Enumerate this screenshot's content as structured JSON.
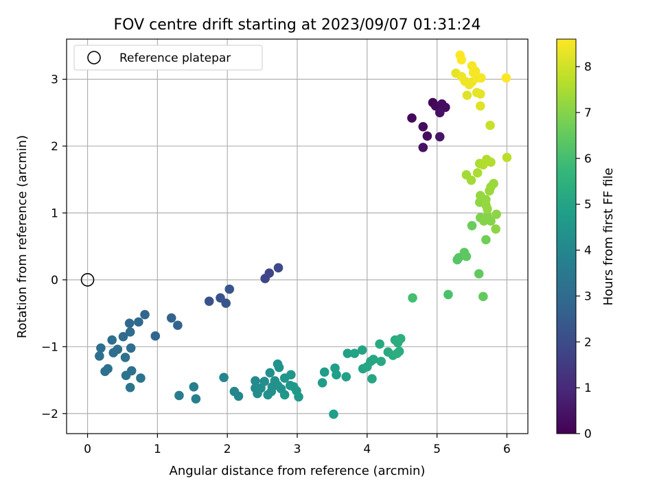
{
  "chart_data": {
    "type": "scatter",
    "title": "FOV centre drift starting at 2023/09/07 01:31:24",
    "xlabel": "Angular distance from reference (arcmin)",
    "ylabel": "Rotation from reference (arcmin)",
    "xlim": [
      -0.3,
      6.3
    ],
    "ylim": [
      -2.3,
      3.6
    ],
    "xticks": [
      0,
      1,
      2,
      3,
      4,
      5,
      6
    ],
    "yticks": [
      -2,
      -1,
      0,
      1,
      2,
      3
    ],
    "grid": true,
    "legend": {
      "placement": "top-left",
      "entries": [
        "Reference platepar"
      ]
    },
    "reference_point": {
      "x": 0,
      "y": 0,
      "label": "Reference platepar"
    },
    "colorbar": {
      "label": "Hours from first FF file",
      "range": [
        0,
        8.6
      ],
      "ticks": [
        0,
        1,
        2,
        3,
        4,
        5,
        6,
        7,
        8
      ],
      "colormap": [
        "#440154",
        "#482878",
        "#3e4989",
        "#31688e",
        "#26828e",
        "#1f9e89",
        "#35b779",
        "#6ece58",
        "#b5de2b",
        "#fde725"
      ]
    },
    "points": [
      {
        "x": 4.64,
        "y": 2.42,
        "h": 0.2
      },
      {
        "x": 4.8,
        "y": 2.29,
        "h": 0.3
      },
      {
        "x": 4.86,
        "y": 2.15,
        "h": 0.3
      },
      {
        "x": 4.8,
        "y": 1.98,
        "h": 0.4
      },
      {
        "x": 4.94,
        "y": 2.65,
        "h": 0.1
      },
      {
        "x": 4.98,
        "y": 2.6,
        "h": 0.2
      },
      {
        "x": 5.03,
        "y": 2.58,
        "h": 0.2
      },
      {
        "x": 5.07,
        "y": 2.63,
        "h": 0.3
      },
      {
        "x": 5.12,
        "y": 2.58,
        "h": 0.3
      },
      {
        "x": 5.04,
        "y": 2.5,
        "h": 0.4
      },
      {
        "x": 5.04,
        "y": 2.14,
        "h": 0.5
      },
      {
        "x": 2.54,
        "y": 0.02,
        "h": 1.8
      },
      {
        "x": 2.6,
        "y": 0.1,
        "h": 1.8
      },
      {
        "x": 2.73,
        "y": 0.18,
        "h": 1.9
      },
      {
        "x": 1.74,
        "y": -0.32,
        "h": 2.2
      },
      {
        "x": 1.9,
        "y": -0.27,
        "h": 2.2
      },
      {
        "x": 1.98,
        "y": -0.35,
        "h": 2.3
      },
      {
        "x": 2.03,
        "y": -0.14,
        "h": 2.3
      },
      {
        "x": 1.2,
        "y": -0.57,
        "h": 2.7
      },
      {
        "x": 1.29,
        "y": -0.68,
        "h": 2.7
      },
      {
        "x": 0.82,
        "y": -0.52,
        "h": 2.8
      },
      {
        "x": 0.97,
        "y": -0.84,
        "h": 2.8
      },
      {
        "x": 0.6,
        "y": -0.65,
        "h": 2.9
      },
      {
        "x": 0.73,
        "y": -0.63,
        "h": 2.9
      },
      {
        "x": 0.61,
        "y": -0.78,
        "h": 3.0
      },
      {
        "x": 0.51,
        "y": -0.85,
        "h": 3.0
      },
      {
        "x": 0.43,
        "y": -1.04,
        "h": 3.0
      },
      {
        "x": 0.37,
        "y": -1.09,
        "h": 3.1
      },
      {
        "x": 0.62,
        "y": -1.02,
        "h": 3.1
      },
      {
        "x": 0.19,
        "y": -1.02,
        "h": 3.1
      },
      {
        "x": 0.17,
        "y": -1.14,
        "h": 3.1
      },
      {
        "x": 0.54,
        "y": -1.16,
        "h": 3.2
      },
      {
        "x": 0.29,
        "y": -1.33,
        "h": 3.2
      },
      {
        "x": 0.25,
        "y": -1.37,
        "h": 3.2
      },
      {
        "x": 0.63,
        "y": -1.36,
        "h": 3.2
      },
      {
        "x": 0.55,
        "y": -1.43,
        "h": 3.3
      },
      {
        "x": 0.76,
        "y": -1.47,
        "h": 3.3
      },
      {
        "x": 0.61,
        "y": -1.61,
        "h": 3.3
      },
      {
        "x": 0.35,
        "y": -0.9,
        "h": 3.1
      },
      {
        "x": 1.31,
        "y": -1.73,
        "h": 3.6
      },
      {
        "x": 1.52,
        "y": -1.6,
        "h": 3.7
      },
      {
        "x": 1.55,
        "y": -1.78,
        "h": 3.7
      },
      {
        "x": 1.95,
        "y": -1.46,
        "h": 3.9
      },
      {
        "x": 2.1,
        "y": -1.67,
        "h": 4.0
      },
      {
        "x": 2.16,
        "y": -1.74,
        "h": 4.0
      },
      {
        "x": 2.4,
        "y": -1.51,
        "h": 4.1
      },
      {
        "x": 2.4,
        "y": -1.62,
        "h": 4.1
      },
      {
        "x": 2.43,
        "y": -1.7,
        "h": 4.2
      },
      {
        "x": 2.53,
        "y": -1.52,
        "h": 4.2
      },
      {
        "x": 2.48,
        "y": -1.62,
        "h": 4.2
      },
      {
        "x": 2.58,
        "y": -1.72,
        "h": 4.3
      },
      {
        "x": 2.63,
        "y": -1.67,
        "h": 4.3
      },
      {
        "x": 2.61,
        "y": -1.39,
        "h": 4.3
      },
      {
        "x": 2.68,
        "y": -1.51,
        "h": 4.3
      },
      {
        "x": 2.72,
        "y": -1.26,
        "h": 4.4
      },
      {
        "x": 2.74,
        "y": -1.31,
        "h": 4.4
      },
      {
        "x": 2.72,
        "y": -1.58,
        "h": 4.4
      },
      {
        "x": 2.77,
        "y": -1.63,
        "h": 4.4
      },
      {
        "x": 2.82,
        "y": -1.47,
        "h": 4.5
      },
      {
        "x": 2.82,
        "y": -1.72,
        "h": 4.5
      },
      {
        "x": 2.9,
        "y": -1.58,
        "h": 4.5
      },
      {
        "x": 2.91,
        "y": -1.42,
        "h": 4.5
      },
      {
        "x": 2.95,
        "y": -1.6,
        "h": 4.6
      },
      {
        "x": 2.99,
        "y": -1.66,
        "h": 4.6
      },
      {
        "x": 3.02,
        "y": -1.75,
        "h": 4.6
      },
      {
        "x": 2.64,
        "y": -1.6,
        "h": 4.3
      },
      {
        "x": 3.36,
        "y": -1.54,
        "h": 4.7
      },
      {
        "x": 3.39,
        "y": -1.38,
        "h": 4.7
      },
      {
        "x": 3.54,
        "y": -1.32,
        "h": 4.8
      },
      {
        "x": 3.56,
        "y": -1.42,
        "h": 4.8
      },
      {
        "x": 3.52,
        "y": -2.01,
        "h": 4.8
      },
      {
        "x": 3.7,
        "y": -1.45,
        "h": 4.9
      },
      {
        "x": 3.72,
        "y": -1.1,
        "h": 4.9
      },
      {
        "x": 3.82,
        "y": -1.1,
        "h": 5.0
      },
      {
        "x": 3.93,
        "y": -1.05,
        "h": 5.0
      },
      {
        "x": 3.94,
        "y": -1.33,
        "h": 5.0
      },
      {
        "x": 4.0,
        "y": -1.3,
        "h": 5.1
      },
      {
        "x": 4.05,
        "y": -1.22,
        "h": 5.1
      },
      {
        "x": 4.09,
        "y": -1.19,
        "h": 5.1
      },
      {
        "x": 4.07,
        "y": -1.48,
        "h": 5.1
      },
      {
        "x": 4.18,
        "y": -0.96,
        "h": 5.2
      },
      {
        "x": 4.2,
        "y": -1.22,
        "h": 5.2
      },
      {
        "x": 4.3,
        "y": -1.08,
        "h": 5.2
      },
      {
        "x": 4.37,
        "y": -1.13,
        "h": 5.3
      },
      {
        "x": 4.4,
        "y": -0.9,
        "h": 5.3
      },
      {
        "x": 4.44,
        "y": -0.94,
        "h": 5.3
      },
      {
        "x": 4.46,
        "y": -1.07,
        "h": 5.3
      },
      {
        "x": 4.48,
        "y": -0.88,
        "h": 5.4
      },
      {
        "x": 4.43,
        "y": -1.1,
        "h": 5.4
      },
      {
        "x": 4.65,
        "y": -0.27,
        "h": 6.0
      },
      {
        "x": 5.16,
        "y": -0.22,
        "h": 6.1
      },
      {
        "x": 5.29,
        "y": 0.3,
        "h": 6.3
      },
      {
        "x": 5.31,
        "y": 0.33,
        "h": 6.3
      },
      {
        "x": 5.39,
        "y": 0.41,
        "h": 6.4
      },
      {
        "x": 5.42,
        "y": 0.35,
        "h": 6.4
      },
      {
        "x": 5.6,
        "y": 0.09,
        "h": 6.5
      },
      {
        "x": 5.66,
        "y": -0.25,
        "h": 6.5
      },
      {
        "x": 5.5,
        "y": 0.81,
        "h": 6.6
      },
      {
        "x": 5.7,
        "y": 0.6,
        "h": 6.7
      },
      {
        "x": 5.62,
        "y": 0.93,
        "h": 6.9
      },
      {
        "x": 5.67,
        "y": 0.88,
        "h": 7.0
      },
      {
        "x": 5.72,
        "y": 0.95,
        "h": 7.0
      },
      {
        "x": 5.77,
        "y": 0.88,
        "h": 7.0
      },
      {
        "x": 5.84,
        "y": 0.76,
        "h": 7.1
      },
      {
        "x": 5.85,
        "y": 0.98,
        "h": 7.1
      },
      {
        "x": 5.61,
        "y": 1.16,
        "h": 7.1
      },
      {
        "x": 5.62,
        "y": 1.26,
        "h": 7.2
      },
      {
        "x": 5.7,
        "y": 1.2,
        "h": 7.2
      },
      {
        "x": 5.72,
        "y": 1.06,
        "h": 7.2
      },
      {
        "x": 5.75,
        "y": 1.33,
        "h": 7.3
      },
      {
        "x": 5.77,
        "y": 1.39,
        "h": 7.3
      },
      {
        "x": 5.81,
        "y": 1.44,
        "h": 7.3
      },
      {
        "x": 5.7,
        "y": 1.12,
        "h": 7.2
      },
      {
        "x": 5.49,
        "y": 1.49,
        "h": 7.4
      },
      {
        "x": 5.42,
        "y": 1.57,
        "h": 7.4
      },
      {
        "x": 5.58,
        "y": 1.6,
        "h": 7.5
      },
      {
        "x": 5.61,
        "y": 1.74,
        "h": 7.5
      },
      {
        "x": 5.66,
        "y": 1.72,
        "h": 7.6
      },
      {
        "x": 5.71,
        "y": 1.8,
        "h": 7.6
      },
      {
        "x": 5.77,
        "y": 1.76,
        "h": 7.6
      },
      {
        "x": 6.0,
        "y": 1.83,
        "h": 7.7
      },
      {
        "x": 5.76,
        "y": 2.31,
        "h": 7.9
      },
      {
        "x": 5.43,
        "y": 2.76,
        "h": 8.2
      },
      {
        "x": 5.62,
        "y": 2.6,
        "h": 8.2
      },
      {
        "x": 5.57,
        "y": 2.8,
        "h": 8.3
      },
      {
        "x": 5.62,
        "y": 2.78,
        "h": 8.3
      },
      {
        "x": 5.27,
        "y": 3.09,
        "h": 8.3
      },
      {
        "x": 5.35,
        "y": 3.04,
        "h": 8.4
      },
      {
        "x": 5.4,
        "y": 2.97,
        "h": 8.4
      },
      {
        "x": 5.46,
        "y": 2.92,
        "h": 8.4
      },
      {
        "x": 5.5,
        "y": 2.96,
        "h": 8.4
      },
      {
        "x": 5.52,
        "y": 3.1,
        "h": 8.5
      },
      {
        "x": 5.55,
        "y": 3.12,
        "h": 8.5
      },
      {
        "x": 5.58,
        "y": 3.02,
        "h": 8.5
      },
      {
        "x": 5.5,
        "y": 3.2,
        "h": 8.5
      },
      {
        "x": 5.63,
        "y": 3.02,
        "h": 8.5
      },
      {
        "x": 5.33,
        "y": 3.36,
        "h": 8.6
      },
      {
        "x": 5.35,
        "y": 3.29,
        "h": 8.6
      },
      {
        "x": 5.99,
        "y": 3.02,
        "h": 8.6
      }
    ]
  }
}
